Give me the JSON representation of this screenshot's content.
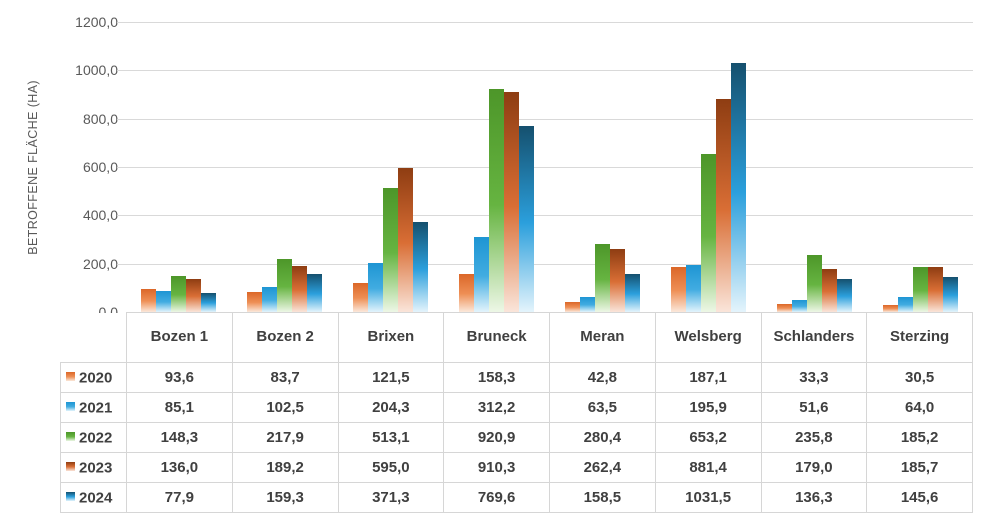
{
  "chart_data": {
    "type": "bar",
    "title": "",
    "xlabel": "",
    "ylabel": "BETROFFENE FLÄCHE (HA)",
    "ylim": [
      0,
      1200
    ],
    "ytick_step": 200,
    "ytick_labels": [
      "1200,0",
      "1000,0",
      "800,0",
      "600,0",
      "400,0",
      "200,0",
      "0,0"
    ],
    "grid": true,
    "legend_position": "table-row-headers",
    "categories": [
      "Bozen 1",
      "Bozen 2",
      "Brixen",
      "Bruneck",
      "Meran",
      "Welsberg",
      "Schlanders",
      "Sterzing"
    ],
    "series": [
      {
        "name": "2020",
        "values": [
          93.6,
          83.7,
          121.5,
          158.3,
          42.8,
          187.1,
          33.3,
          30.5
        ],
        "display": [
          "93,6",
          "83,7",
          "121,5",
          "158,3",
          "42,8",
          "187,1",
          "33,3",
          "30,5"
        ],
        "gradient": [
          "#DB6728",
          "#EE8F55",
          "#FBE8DB"
        ]
      },
      {
        "name": "2021",
        "values": [
          85.1,
          102.5,
          204.3,
          312.2,
          63.5,
          195.9,
          51.6,
          64.0
        ],
        "display": [
          "85,1",
          "102,5",
          "204,3",
          "312,2",
          "63,5",
          "195,9",
          "51,6",
          "64,0"
        ],
        "gradient": [
          "#1E95D3",
          "#41ACE1",
          "#E3F4FC"
        ]
      },
      {
        "name": "2022",
        "values": [
          148.3,
          217.9,
          513.1,
          920.9,
          280.4,
          653.2,
          235.8,
          185.2
        ],
        "display": [
          "148,3",
          "217,9",
          "513,1",
          "920,9",
          "280,4",
          "653,2",
          "235,8",
          "185,2"
        ],
        "gradient": [
          "#4D9629",
          "#66B441",
          "#EDF7E6"
        ]
      },
      {
        "name": "2023",
        "values": [
          136.0,
          189.2,
          595.0,
          910.3,
          262.4,
          881.4,
          179.0,
          185.7
        ],
        "display": [
          "136,0",
          "189,2",
          "595,0",
          "910,3",
          "262,4",
          "881,4",
          "179,0",
          "185,7"
        ],
        "gradient": [
          "#8E3D12",
          "#D96E35",
          "#FAE5DA"
        ]
      },
      {
        "name": "2024",
        "values": [
          77.9,
          159.3,
          371.3,
          769.6,
          158.5,
          1031.5,
          136.3,
          145.6
        ],
        "display": [
          "77,9",
          "159,3",
          "371,3",
          "769,6",
          "158,5",
          "1031,5",
          "136,3",
          "145,6"
        ],
        "gradient": [
          "#15506E",
          "#2B9FDC",
          "#E4F4FC"
        ]
      }
    ],
    "colors": {
      "gridline": "#D9D9D9",
      "axis_text": "#595959",
      "table_text": "#404040",
      "table_border": "#D6D6D6"
    }
  }
}
